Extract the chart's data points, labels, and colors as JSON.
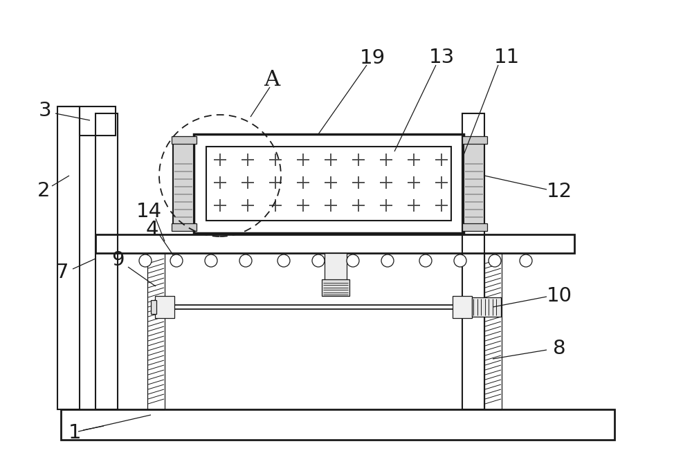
{
  "bg_color": "#ffffff",
  "line_color": "#1a1a1a",
  "lw": 1.5,
  "tlw": 0.9,
  "label_fs": 21
}
